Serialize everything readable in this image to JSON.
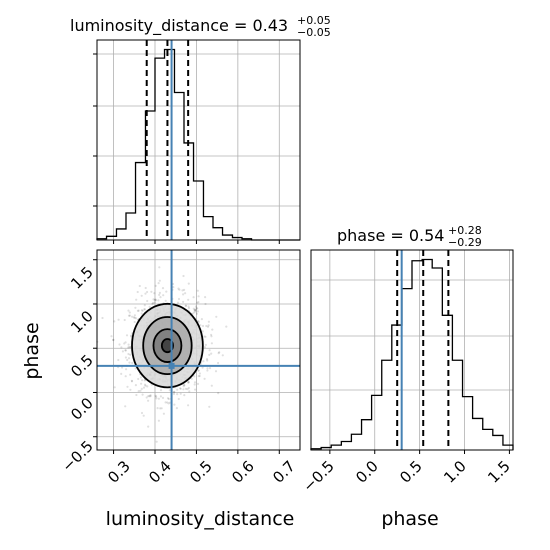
{
  "chart_data": {
    "type": "corner",
    "parameters": [
      "luminosity_distance",
      "phase"
    ],
    "truth": {
      "luminosity_distance": 0.44,
      "phase": 0.3
    },
    "truth_color": "#4682b4",
    "line_color": "#000000",
    "titles": {
      "luminosity_distance": {
        "lhs": "luminosity_distance = 0.43",
        "plus": "+0.05",
        "minus": "−0.05"
      },
      "phase": {
        "lhs": "phase = 0.54",
        "plus": "+0.28",
        "minus": "−0.29"
      }
    },
    "axis_labels": {
      "x1": "luminosity_distance",
      "x2": "phase",
      "y": "phase"
    },
    "x_range_distance": [
      0.26,
      0.75
    ],
    "x_range_phase": [
      -0.71,
      1.54
    ],
    "y_range_phase": [
      -0.65,
      1.61
    ],
    "ticks_distance": [
      "0.3",
      "0.4",
      "0.5",
      "0.6",
      "0.7"
    ],
    "ticks_phase": [
      "−0.5",
      "0.0",
      "0.5",
      "1.0",
      "1.5"
    ],
    "hist_distance": {
      "quantiles": [
        0.38,
        0.43,
        0.48
      ],
      "edges": [
        0.26,
        0.283,
        0.307,
        0.33,
        0.353,
        0.377,
        0.4,
        0.423,
        0.447,
        0.47,
        0.493,
        0.517,
        0.54,
        0.563,
        0.587,
        0.61,
        0.633,
        0.657,
        0.68,
        0.703,
        0.727,
        0.75
      ],
      "counts": [
        1,
        3,
        9,
        22,
        63,
        105,
        148,
        155,
        120,
        79,
        48,
        19,
        10,
        4,
        2,
        1,
        0,
        0,
        0,
        0,
        0
      ]
    },
    "hist_phase": {
      "quantiles": [
        0.25,
        0.54,
        0.82
      ],
      "edges": [
        -0.71,
        -0.597,
        -0.485,
        -0.372,
        -0.26,
        -0.147,
        -0.035,
        0.078,
        0.19,
        0.303,
        0.415,
        0.528,
        0.64,
        0.753,
        0.865,
        0.978,
        1.09,
        1.203,
        1.315,
        1.428,
        1.54
      ],
      "counts": [
        1,
        2,
        4,
        7,
        13,
        25,
        45,
        74,
        103,
        133,
        156,
        157,
        150,
        111,
        74,
        44,
        26,
        17,
        12,
        4
      ]
    },
    "density_2d": {
      "center": [
        0.43,
        0.53
      ],
      "sigma": [
        0.045,
        0.27
      ],
      "contour_levels_sigma": [
        0.3,
        0.75,
        1.3,
        1.9
      ]
    }
  }
}
